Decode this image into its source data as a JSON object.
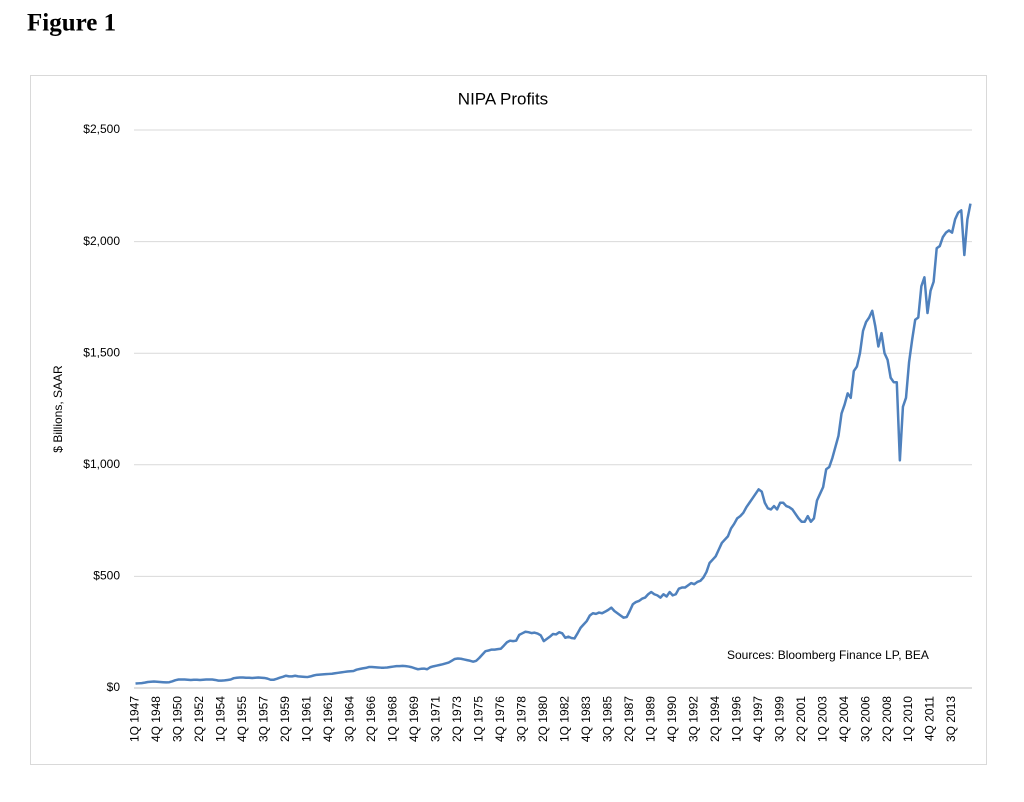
{
  "figure_label": "Figure 1",
  "chart_data": {
    "type": "line",
    "title": "NIPA Profits",
    "y_label": "$ Billions, SAAR",
    "annotation": "Sources: Bloomberg Finance LP, BEA",
    "categories": [
      "1Q 1947",
      null,
      null,
      null,
      null,
      null,
      null,
      "4Q 1948",
      null,
      null,
      null,
      null,
      null,
      null,
      "3Q 1950",
      null,
      null,
      null,
      null,
      null,
      null,
      "2Q 1952",
      null,
      null,
      null,
      null,
      null,
      null,
      "1Q 1954",
      null,
      null,
      null,
      null,
      null,
      null,
      "4Q 1955",
      null,
      null,
      null,
      null,
      null,
      null,
      "3Q 1957",
      null,
      null,
      null,
      null,
      null,
      null,
      "2Q 1959",
      null,
      null,
      null,
      null,
      null,
      null,
      "1Q 1961",
      null,
      null,
      null,
      null,
      null,
      null,
      "4Q 1962",
      null,
      null,
      null,
      null,
      null,
      null,
      "3Q 1964",
      null,
      null,
      null,
      null,
      null,
      null,
      "2Q 1966",
      null,
      null,
      null,
      null,
      null,
      null,
      "1Q 1968",
      null,
      null,
      null,
      null,
      null,
      null,
      "4Q 1969",
      null,
      null,
      null,
      null,
      null,
      null,
      "3Q 1971",
      null,
      null,
      null,
      null,
      null,
      null,
      "2Q 1973",
      null,
      null,
      null,
      null,
      null,
      null,
      "1Q 1975",
      null,
      null,
      null,
      null,
      null,
      null,
      "4Q 1976",
      null,
      null,
      null,
      null,
      null,
      null,
      "3Q 1978",
      null,
      null,
      null,
      null,
      null,
      null,
      "2Q 1980",
      null,
      null,
      null,
      null,
      null,
      null,
      "1Q 1982",
      null,
      null,
      null,
      null,
      null,
      null,
      "4Q 1983",
      null,
      null,
      null,
      null,
      null,
      null,
      "3Q 1985",
      null,
      null,
      null,
      null,
      null,
      null,
      "2Q 1987",
      null,
      null,
      null,
      null,
      null,
      null,
      "1Q 1989",
      null,
      null,
      null,
      null,
      null,
      null,
      "4Q 1990",
      null,
      null,
      null,
      null,
      null,
      null,
      "3Q 1992",
      null,
      null,
      null,
      null,
      null,
      null,
      "2Q 1994",
      null,
      null,
      null,
      null,
      null,
      null,
      "1Q 1996",
      null,
      null,
      null,
      null,
      null,
      null,
      "4Q 1997",
      null,
      null,
      null,
      null,
      null,
      null,
      "3Q 1999",
      null,
      null,
      null,
      null,
      null,
      null,
      "2Q 2001",
      null,
      null,
      null,
      null,
      null,
      null,
      "1Q 2003",
      null,
      null,
      null,
      null,
      null,
      null,
      "4Q 2004",
      null,
      null,
      null,
      null,
      null,
      null,
      "3Q 2006",
      null,
      null,
      null,
      null,
      null,
      null,
      "2Q 2008",
      null,
      null,
      null,
      null,
      null,
      null,
      "1Q 2010",
      null,
      null,
      null,
      null,
      null,
      null,
      "4Q 2011",
      null,
      null,
      null,
      null,
      null,
      null,
      "3Q 2013",
      null,
      null,
      null,
      null,
      null,
      null
    ],
    "series": [
      {
        "name": "NIPA Profits",
        "color": "#4f81bd",
        "values": [
          20,
          21,
          22,
          24,
          27,
          28,
          29,
          28,
          27,
          26,
          25,
          26,
          30,
          35,
          38,
          38,
          38,
          37,
          36,
          37,
          37,
          36,
          37,
          38,
          38,
          38,
          36,
          33,
          33,
          34,
          36,
          38,
          44,
          46,
          47,
          47,
          46,
          46,
          45,
          46,
          47,
          46,
          45,
          42,
          37,
          37,
          41,
          46,
          50,
          55,
          52,
          52,
          55,
          52,
          51,
          50,
          49,
          52,
          56,
          59,
          60,
          61,
          62,
          63,
          64,
          66,
          68,
          70,
          72,
          74,
          75,
          76,
          82,
          85,
          88,
          90,
          94,
          94,
          93,
          92,
          91,
          91,
          92,
          94,
          96,
          98,
          98,
          99,
          98,
          96,
          93,
          88,
          84,
          86,
          87,
          84,
          93,
          97,
          100,
          103,
          106,
          110,
          114,
          122,
          130,
          132,
          131,
          128,
          125,
          122,
          118,
          122,
          135,
          150,
          165,
          168,
          172,
          172,
          174,
          176,
          190,
          205,
          212,
          210,
          212,
          238,
          245,
          252,
          250,
          246,
          248,
          244,
          236,
          210,
          220,
          230,
          242,
          240,
          250,
          245,
          225,
          230,
          224,
          222,
          245,
          270,
          285,
          300,
          325,
          335,
          332,
          338,
          335,
          342,
          350,
          360,
          345,
          335,
          325,
          315,
          318,
          345,
          375,
          385,
          390,
          400,
          405,
          420,
          430,
          420,
          415,
          405,
          420,
          410,
          430,
          415,
          420,
          445,
          450,
          450,
          460,
          470,
          465,
          475,
          480,
          495,
          520,
          560,
          575,
          590,
          620,
          650,
          665,
          680,
          715,
          735,
          760,
          770,
          785,
          810,
          830,
          850,
          870,
          890,
          880,
          830,
          805,
          800,
          815,
          800,
          830,
          830,
          815,
          810,
          800,
          780,
          760,
          745,
          745,
          770,
          745,
          760,
          840,
          870,
          900,
          980,
          990,
          1030,
          1080,
          1130,
          1230,
          1270,
          1320,
          1300,
          1420,
          1440,
          1500,
          1600,
          1640,
          1660,
          1690,
          1620,
          1530,
          1590,
          1500,
          1470,
          1390,
          1370,
          1370,
          1020,
          1260,
          1300,
          1460,
          1560,
          1650,
          1660,
          1800,
          1840,
          1680,
          1780,
          1820,
          1970,
          1980,
          2020,
          2040,
          2050,
          2040,
          2100,
          2130,
          2140,
          1940,
          2100,
          2170
        ]
      }
    ],
    "ylim": [
      0,
      2500
    ],
    "yticks": [
      {
        "value": 0,
        "label": "$0"
      },
      {
        "value": 500,
        "label": "$500"
      },
      {
        "value": 1000,
        "label": "$1,000"
      },
      {
        "value": 1500,
        "label": "$1,500"
      },
      {
        "value": 2000,
        "label": "$2,000"
      },
      {
        "value": 2500,
        "label": "$2,500"
      }
    ],
    "grid": true
  }
}
